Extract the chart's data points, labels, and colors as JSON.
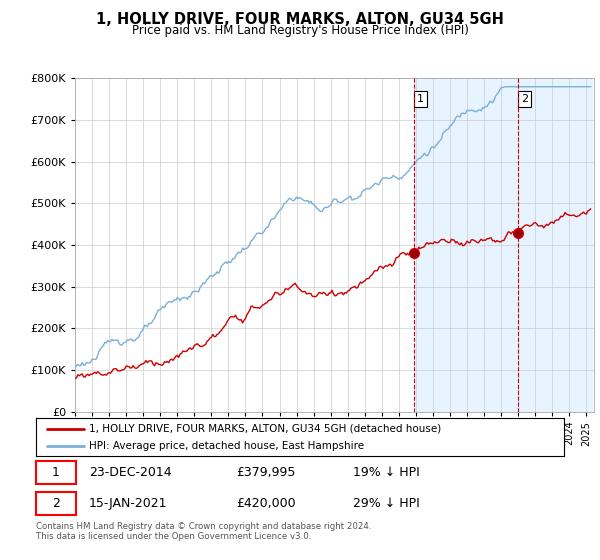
{
  "title": "1, HOLLY DRIVE, FOUR MARKS, ALTON, GU34 5GH",
  "subtitle": "Price paid vs. HM Land Registry's House Price Index (HPI)",
  "legend_line1": "1, HOLLY DRIVE, FOUR MARKS, ALTON, GU34 5GH (detached house)",
  "legend_line2": "HPI: Average price, detached house, East Hampshire",
  "annotation1_label": "1",
  "annotation1_date": "23-DEC-2014",
  "annotation1_price": "£379,995",
  "annotation1_hpi": "19% ↓ HPI",
  "annotation2_label": "2",
  "annotation2_date": "15-JAN-2021",
  "annotation2_price": "£420,000",
  "annotation2_hpi": "29% ↓ HPI",
  "footer": "Contains HM Land Registry data © Crown copyright and database right 2024.\nThis data is licensed under the Open Government Licence v3.0.",
  "hpi_color": "#7ab0d8",
  "hpi_shade_color": "#ddeeff",
  "price_color": "#cc0000",
  "vline_color": "#cc0000",
  "ylim_min": 0,
  "ylim_max": 800000,
  "yticks": [
    0,
    100000,
    200000,
    300000,
    400000,
    500000,
    600000,
    700000,
    800000
  ],
  "year_start": 1995,
  "year_end": 2025,
  "sale1_year": 2014.917,
  "sale1_price": 379995,
  "sale2_year": 2021.0,
  "sale2_price": 420000
}
